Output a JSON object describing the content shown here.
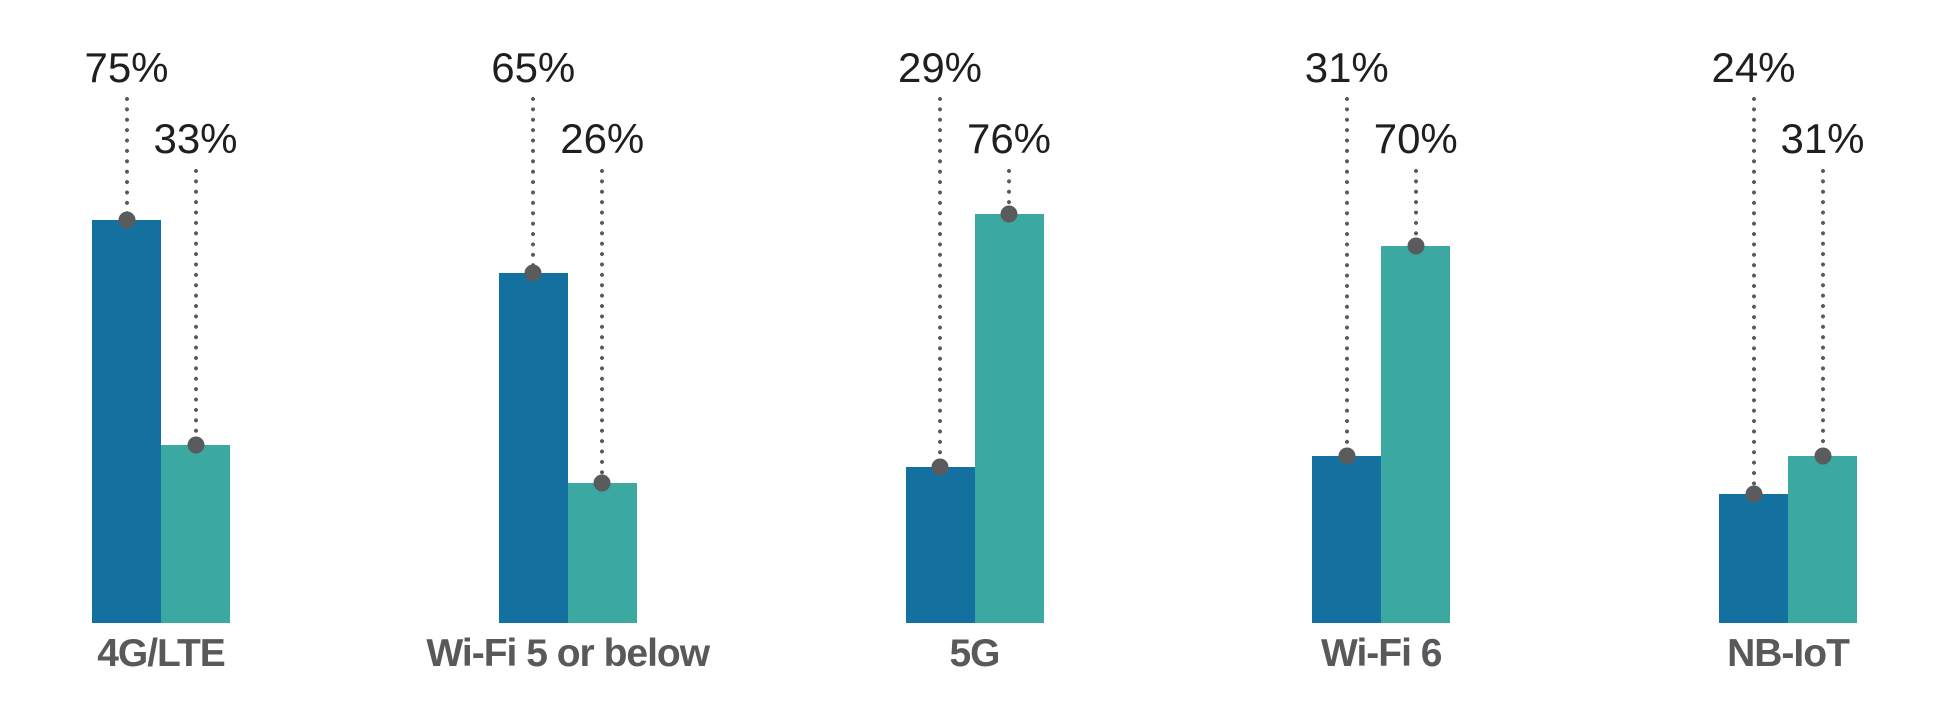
{
  "chart_data": {
    "type": "bar",
    "categories": [
      "4G/LTE",
      "Wi-Fi 5 or below",
      "5G",
      "Wi-Fi 6",
      "NB-IoT"
    ],
    "series": [
      {
        "name": "blue",
        "color": "#14719f",
        "values": [
          75,
          65,
          29,
          31,
          24
        ]
      },
      {
        "name": "teal",
        "color": "#3ba8a1",
        "values": [
          33,
          26,
          76,
          70,
          31
        ]
      }
    ],
    "value_suffix": "%",
    "value_labels": {
      "blue": [
        "75%",
        "65%",
        "29%",
        "31%",
        "24%"
      ],
      "teal": [
        "33%",
        "26%",
        "76%",
        "70%",
        "31%"
      ]
    },
    "ylim": [
      0,
      100
    ],
    "grid": false,
    "legend": "none",
    "title": "",
    "xlabel": "",
    "ylabel": "",
    "annotations": "each bar topped by a gray dot with a vertical dotted leader line rising to its percentage label"
  },
  "styles": {
    "background": "#ffffff",
    "value_label_color": "#211e1f",
    "category_label_color": "#58595b",
    "leader_color": "#5a5b5d"
  }
}
